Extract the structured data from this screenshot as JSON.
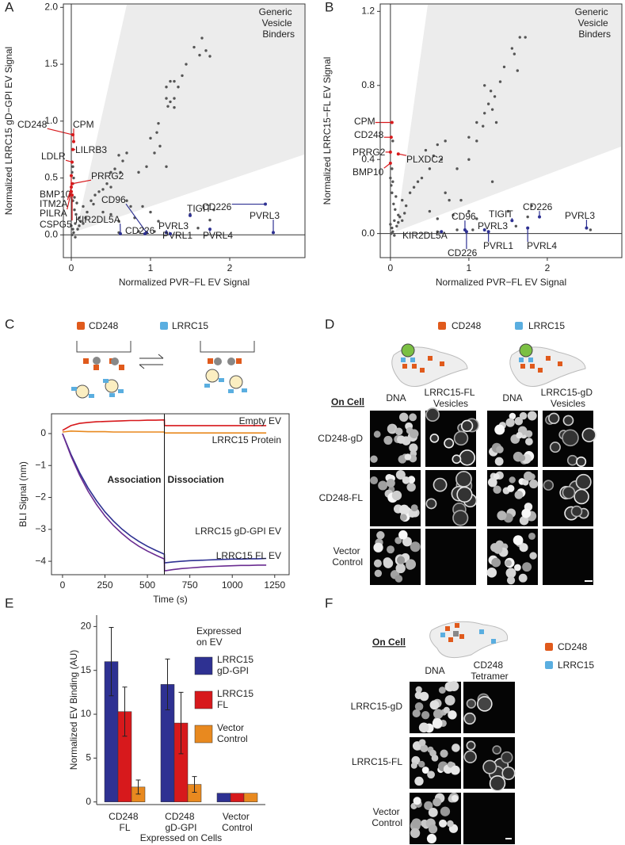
{
  "panel_labels": [
    "A",
    "B",
    "C",
    "D",
    "E",
    "F"
  ],
  "chart_data": [
    {
      "type": "scatter",
      "x_label": "Normalized PVR−FL EV Signal",
      "y_label": "Normalized LRRC15 gD−GPI EV Signal",
      "region_label": "Generic Vesicle Binders",
      "xlim": [
        -0.1,
        2.95
      ],
      "ylim": [
        -0.2,
        2.03
      ],
      "xticks": [
        0,
        1,
        2
      ],
      "yticks": [
        {
          "value": 0,
          "label": "0.0"
        },
        {
          "value": 0.5,
          "label": "0.5"
        },
        {
          "value": 1,
          "label": "1.0"
        },
        {
          "value": 1.5,
          "label": "1.5"
        },
        {
          "value": 2,
          "label": "2.0"
        }
      ],
      "color": "#555555",
      "x": [
        1.65,
        1.55,
        1.7,
        1.45,
        1.62,
        1.75,
        1.4,
        1.2,
        1.25,
        1.3,
        1.35,
        1.2,
        1.3,
        1.25,
        1.22,
        1.3,
        1.1,
        1.08,
        1.0,
        1.12,
        1.05,
        0.7,
        0.6,
        0.65,
        0.5,
        0.55,
        0.62,
        0.85,
        1.2,
        0.95,
        0.45,
        0.5,
        0.4,
        0.35,
        0.3,
        0.25,
        0.28,
        0.7,
        0.75,
        0.9,
        1.0,
        0.8,
        0.6,
        0.5,
        0.4,
        1.1,
        1.8,
        1.5,
        0.15,
        0.2,
        0.1,
        0.05,
        0.02,
        0.03,
        0.08,
        0.1,
        0.12,
        0.06,
        0.04,
        0.02,
        0.01,
        0.05,
        0.15,
        0.18,
        0.0,
        0.07,
        2.55,
        1.75,
        1.6,
        1.05,
        0.6,
        0.85,
        0.02,
        0.01,
        0.03,
        0.02,
        0.04
      ],
      "values": [
        1.73,
        1.65,
        1.62,
        1.5,
        1.58,
        1.57,
        1.4,
        1.3,
        1.35,
        1.35,
        1.3,
        1.2,
        1.2,
        1.17,
        1.13,
        1.12,
        0.98,
        0.9,
        0.85,
        0.78,
        0.72,
        0.72,
        0.7,
        0.65,
        0.55,
        0.58,
        0.55,
        0.55,
        0.6,
        0.6,
        0.45,
        0.42,
        0.4,
        0.38,
        0.35,
        0.3,
        0.27,
        0.3,
        0.25,
        0.25,
        0.2,
        0.15,
        0.12,
        0.18,
        0.2,
        0.12,
        0.22,
        0.18,
        0.25,
        0.2,
        0.15,
        0.1,
        0.05,
        0.02,
        0.05,
        0.08,
        0.12,
        0.18,
        0.22,
        0.3,
        0.0,
        -0.02,
        0.1,
        0.15,
        0.08,
        0.28,
        0.02,
        0.13,
        0.06,
        0.03,
        0.02,
        0.03,
        0.6,
        0.55,
        0.5,
        0.45,
        0.33
      ],
      "annotations": [
        {
          "text": "CD248",
          "x": 0.02,
          "y": 0.88,
          "color": "#d7191c"
        },
        {
          "text": "CPM",
          "x": 0.03,
          "y": 0.82,
          "color": "#d7191c"
        },
        {
          "text": "LILRB3",
          "x": 0.02,
          "y": 0.75,
          "color": "#d7191c"
        },
        {
          "text": "LDLR",
          "x": 0.01,
          "y": 0.64,
          "color": "#d7191c"
        },
        {
          "text": "BMP10",
          "x": 0.0,
          "y": 0.52,
          "color": "#d7191c"
        },
        {
          "text": "PRRG2",
          "x": 0.01,
          "y": 0.45,
          "color": "#d7191c"
        },
        {
          "text": "ITM2A",
          "x": 0.0,
          "y": 0.42,
          "color": "#d7191c"
        },
        {
          "text": "PILRA",
          "x": 0.0,
          "y": 0.38,
          "color": "#d7191c"
        },
        {
          "text": "CSPG5",
          "x": 0.01,
          "y": 0.35,
          "color": "#d7191c"
        },
        {
          "text": "CD96",
          "x": 0.95,
          "y": 0.02,
          "color": "#2e3192"
        },
        {
          "text": "KIR2DL5A",
          "x": 0.62,
          "y": 0.01,
          "color": "#2e3192"
        },
        {
          "text": "CD226",
          "x": 0.93,
          "y": 0.01,
          "color": "#2e3192"
        },
        {
          "text": "PVRL3",
          "x": 1.2,
          "y": 0.02,
          "color": "#2e3192"
        },
        {
          "text": "PVRL1",
          "x": 1.25,
          "y": 0.01,
          "color": "#2e3192"
        },
        {
          "text": "TIGIT",
          "x": 1.5,
          "y": 0.17,
          "color": "#2e3192"
        },
        {
          "text": "CD226",
          "x": 2.45,
          "y": 0.27,
          "color": "#2e3192"
        },
        {
          "text": "PVRL3",
          "x": 2.55,
          "y": 0.02,
          "color": "#2e3192"
        },
        {
          "text": "PVRL4",
          "x": 1.75,
          "y": 0.05,
          "color": "#2e3192"
        }
      ]
    },
    {
      "type": "scatter",
      "x_label": "Normalized PVR−FL EV Signal",
      "y_label": "Normalized LRRC15−FL EV Signal",
      "region_label": "Generic Vesicle Binders",
      "xlim": [
        -0.13,
        2.95
      ],
      "ylim": [
        -0.13,
        1.24
      ],
      "xticks": [
        0,
        1,
        2
      ],
      "yticks": [
        {
          "value": 0,
          "label": "0.0"
        },
        {
          "value": 0.4,
          "label": "0.4"
        },
        {
          "value": 0.8,
          "label": "0.8"
        },
        {
          "value": 1.2,
          "label": "1.2"
        }
      ],
      "color": "#555555",
      "x": [
        1.65,
        1.72,
        1.55,
        1.58,
        1.45,
        1.62,
        1.4,
        1.2,
        1.28,
        1.33,
        1.25,
        1.3,
        1.2,
        1.35,
        1.1,
        1.18,
        1.0,
        1.1,
        0.7,
        0.6,
        0.45,
        0.55,
        0.65,
        0.85,
        1.0,
        1.3,
        0.5,
        0.4,
        0.35,
        0.3,
        0.25,
        0.7,
        0.75,
        0.9,
        1.0,
        0.8,
        0.6,
        0.5,
        1.1,
        1.8,
        1.5,
        0.15,
        0.2,
        0.1,
        0.05,
        0.02,
        0.03,
        0.08,
        0.1,
        0.12,
        0.06,
        0.04,
        0.02,
        0.01,
        0.05,
        0.15,
        0.18,
        0.0,
        0.07,
        2.55,
        1.75,
        1.6,
        1.05,
        0.6,
        0.85,
        0.0,
        0.03,
        0.01,
        0.02,
        0.03
      ],
      "values": [
        1.06,
        1.06,
        1.0,
        0.97,
        0.9,
        0.88,
        0.82,
        0.8,
        0.77,
        0.74,
        0.7,
        0.67,
        0.65,
        0.6,
        0.6,
        0.58,
        0.52,
        0.5,
        0.5,
        0.48,
        0.45,
        0.42,
        0.4,
        0.35,
        0.4,
        0.28,
        0.35,
        0.3,
        0.28,
        0.25,
        0.22,
        0.22,
        0.18,
        0.18,
        0.12,
        0.1,
        0.08,
        0.12,
        0.08,
        0.15,
        0.12,
        0.18,
        0.15,
        0.1,
        0.07,
        0.03,
        0.01,
        0.04,
        0.06,
        0.09,
        0.13,
        0.16,
        0.22,
        0.0,
        -0.01,
        0.07,
        0.11,
        0.05,
        0.2,
        0.02,
        0.09,
        0.04,
        0.02,
        0.01,
        0.02,
        0.3,
        0.5,
        0.26,
        0.35,
        0.28
      ],
      "annotations": [
        {
          "text": "CPM",
          "x": 0.02,
          "y": 0.6,
          "color": "#d7191c"
        },
        {
          "text": "CD248",
          "x": 0.01,
          "y": 0.52,
          "color": "#d7191c"
        },
        {
          "text": "PRRG2",
          "x": 0.0,
          "y": 0.44,
          "color": "#d7191c"
        },
        {
          "text": "PLXDC2",
          "x": 0.1,
          "y": 0.43,
          "color": "#d7191c"
        },
        {
          "text": "BMP10",
          "x": 0.0,
          "y": 0.38,
          "color": "#d7191c"
        },
        {
          "text": "CD96",
          "x": 0.95,
          "y": 0.02,
          "color": "#2e3192"
        },
        {
          "text": "KIR2DL5A",
          "x": 0.65,
          "y": 0.01,
          "color": "#2e3192"
        },
        {
          "text": "CD226",
          "x": 0.97,
          "y": 0.01,
          "color": "#2e3192"
        },
        {
          "text": "PVRL3",
          "x": 1.2,
          "y": 0.02,
          "color": "#2e3192"
        },
        {
          "text": "PVRL1",
          "x": 1.25,
          "y": 0.01,
          "color": "#2e3192"
        },
        {
          "text": "TIGIT",
          "x": 1.55,
          "y": 0.07,
          "color": "#2e3192"
        },
        {
          "text": "CD226",
          "x": 1.9,
          "y": 0.09,
          "color": "#2e3192"
        },
        {
          "text": "PVRL3",
          "x": 2.5,
          "y": 0.03,
          "color": "#2e3192"
        },
        {
          "text": "PVRL4",
          "x": 1.75,
          "y": 0.03,
          "color": "#2e3192"
        }
      ]
    },
    {
      "type": "line",
      "x_label": "Time (s)",
      "y_label": "BLI Signal (nm)",
      "annotations": [
        "Association",
        "Dissociation"
      ],
      "dissociation_start": 600,
      "xlim": [
        -65,
        1335
      ],
      "ylim": [
        -4.42,
        0.62
      ],
      "xticks": [
        0,
        250,
        500,
        750,
        1000,
        1250
      ],
      "yticks": [
        0,
        {
          "value": -1,
          "label": "−1"
        },
        {
          "value": -2,
          "label": "−2"
        },
        {
          "value": -3,
          "label": "−3"
        },
        {
          "value": -4,
          "label": "−4"
        }
      ],
      "x": [
        0,
        50,
        100,
        150,
        200,
        250,
        300,
        350,
        400,
        450,
        500,
        550,
        600,
        601,
        650,
        700,
        750,
        800,
        850,
        900,
        950,
        1000,
        1050,
        1100,
        1150,
        1200
      ],
      "series": [
        {
          "name": "Empty EV",
          "color": "#d7191c",
          "values": [
            0.1,
            0.25,
            0.32,
            0.35,
            0.37,
            0.38,
            0.39,
            0.4,
            0.41,
            0.41,
            0.42,
            0.42,
            0.43,
            0.25,
            0.25,
            0.25,
            0.25,
            0.25,
            0.25,
            0.25,
            0.25,
            0.25,
            0.25,
            0.25,
            0.25,
            0.25
          ]
        },
        {
          "name": "LRRC15 Protein",
          "color": "#e8891f",
          "values": [
            0.05,
            0.08,
            0.07,
            0.06,
            0.06,
            0.06,
            0.05,
            0.05,
            0.05,
            0.05,
            0.05,
            0.05,
            0.05,
            0.02,
            0.02,
            0.02,
            0.02,
            0.02,
            0.02,
            0.02,
            0.02,
            0.02,
            0.02,
            0.02,
            0.02,
            0.02
          ]
        },
        {
          "name": "LRRC15 gD-GPI EV",
          "color": "#2e3192",
          "values": [
            0,
            -0.65,
            -1.22,
            -1.7,
            -2.1,
            -2.45,
            -2.74,
            -2.99,
            -3.2,
            -3.38,
            -3.53,
            -3.66,
            -3.78,
            -4.05,
            -4.02,
            -4.0,
            -3.98,
            -3.97,
            -3.96,
            -3.95,
            -3.94,
            -3.93,
            -3.93,
            -3.92,
            -3.92,
            -3.91
          ]
        },
        {
          "name": "LRRC15 FL EV",
          "color": "#6a2c91",
          "values": [
            0,
            -0.7,
            -1.3,
            -1.8,
            -2.22,
            -2.58,
            -2.88,
            -3.13,
            -3.35,
            -3.53,
            -3.68,
            -3.81,
            -3.93,
            -4.3,
            -4.26,
            -4.23,
            -4.21,
            -4.19,
            -4.17,
            -4.16,
            -4.15,
            -4.14,
            -4.13,
            -4.13,
            -4.12,
            -4.12
          ]
        }
      ]
    },
    {
      "type": "bar",
      "x_label": "Expressed on Cells",
      "y_label": "Normalized EV Binding (AU)",
      "legend_title": "Expressed on EV",
      "categories": [
        "CD248 FL",
        "CD248 gD-GPI",
        "Vector Control"
      ],
      "ylim": [
        -0.3,
        21.3
      ],
      "yticks": [
        0,
        5,
        10,
        15,
        20
      ],
      "series": [
        {
          "name": "LRRC15 gD-GPI",
          "color": "#2e3192",
          "values": [
            16,
            13.4,
            1
          ],
          "errors": [
            3.9,
            2.9,
            null
          ]
        },
        {
          "name": "LRRC15 FL",
          "color": "#d7191c",
          "values": [
            10.3,
            9,
            1
          ],
          "errors": [
            2.8,
            3.5,
            null
          ]
        },
        {
          "name": "Vector Control",
          "color": "#e8891f",
          "values": [
            1.7,
            2,
            1
          ],
          "errors": [
            0.8,
            0.9,
            null
          ]
        }
      ]
    }
  ],
  "diagram_c": {
    "legend": [
      "CD248",
      "LRRC15"
    ]
  },
  "panel_d": {
    "legend": [
      "CD248",
      "LRRC15"
    ],
    "on_cell": "On Cell",
    "columns": [
      "DNA",
      "LRRC15-FL Vesicles",
      "DNA",
      "LRRC15-gD Vesicles"
    ],
    "rows": [
      "CD248-gD",
      "CD248-FL",
      "Vector Control"
    ]
  },
  "panel_f": {
    "legend": [
      "CD248",
      "LRRC15"
    ],
    "on_cell": "On Cell",
    "columns": [
      "DNA",
      "CD248 Tetramer"
    ],
    "rows": [
      "LRRC15-gD",
      "LRRC15-FL",
      "Vector Control"
    ]
  }
}
